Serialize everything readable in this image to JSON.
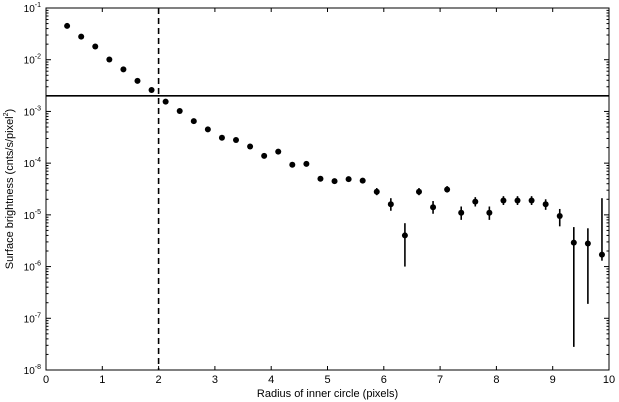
{
  "chart_data": {
    "type": "scatter",
    "title": "",
    "xlabel": "Radius of inner circle (pixels)",
    "ylabel": "Surface brightness (cnts/s/pixel",
    "ylabel_sup": "2",
    "ylabel_close": ")",
    "xlim": [
      0,
      10
    ],
    "ylim": [
      1e-08,
      0.1
    ],
    "yscale": "log",
    "grid": false,
    "x_ticks": [
      0,
      1,
      2,
      3,
      4,
      5,
      6,
      7,
      8,
      9,
      10
    ],
    "x_tick_labels": [
      "0",
      "1",
      "2",
      "3",
      "4",
      "5",
      "6",
      "7",
      "8",
      "9",
      "10"
    ],
    "y_ticks": [
      -8,
      -7,
      -6,
      -5,
      -4,
      -3,
      -2,
      -1
    ],
    "y_tick_labels": [
      {
        "base": "10",
        "exp": "-8"
      },
      {
        "base": "10",
        "exp": "-7"
      },
      {
        "base": "10",
        "exp": "-6"
      },
      {
        "base": "10",
        "exp": "-5"
      },
      {
        "base": "10",
        "exp": "-4"
      },
      {
        "base": "10",
        "exp": "-3"
      },
      {
        "base": "10",
        "exp": "-2"
      },
      {
        "base": "10",
        "exp": "-1"
      }
    ],
    "reference_lines": [
      {
        "orientation": "horizontal",
        "value": 0.002,
        "style": "solid"
      },
      {
        "orientation": "vertical",
        "value": 2,
        "style": "dashed"
      }
    ],
    "series": [
      {
        "marker": "circle",
        "color": "#000000",
        "points": [
          {
            "x": 0.375,
            "y": 0.045
          },
          {
            "x": 0.625,
            "y": 0.028
          },
          {
            "x": 0.875,
            "y": 0.018
          },
          {
            "x": 1.125,
            "y": 0.0101
          },
          {
            "x": 1.375,
            "y": 0.0065
          },
          {
            "x": 1.625,
            "y": 0.0039
          },
          {
            "x": 1.875,
            "y": 0.0026
          },
          {
            "x": 2.125,
            "y": 0.00155
          },
          {
            "x": 2.375,
            "y": 0.00102
          },
          {
            "x": 2.625,
            "y": 0.00065
          },
          {
            "x": 2.875,
            "y": 0.00045
          },
          {
            "x": 3.125,
            "y": 0.00031
          },
          {
            "x": 3.375,
            "y": 0.00028
          },
          {
            "x": 3.625,
            "y": 0.00021
          },
          {
            "x": 3.875,
            "y": 0.000138
          },
          {
            "x": 4.125,
            "y": 0.000167
          },
          {
            "x": 4.375,
            "y": 9.3e-05
          },
          {
            "x": 4.625,
            "y": 9.7e-05
          },
          {
            "x": 4.875,
            "y": 5e-05
          },
          {
            "x": 5.125,
            "y": 4.5e-05
          },
          {
            "x": 5.375,
            "y": 4.9e-05
          },
          {
            "x": 5.625,
            "y": 4.6e-05,
            "yerr_low": 4.1e-05,
            "yerr_high": 5.1e-05
          },
          {
            "x": 5.875,
            "y": 2.8e-05,
            "yerr_low": 2.4e-05,
            "yerr_high": 3.3e-05
          },
          {
            "x": 6.125,
            "y": 1.6e-05,
            "yerr_low": 1.2e-05,
            "yerr_high": 2.1e-05
          },
          {
            "x": 6.375,
            "y": 4e-06,
            "yerr_low": 1e-06,
            "yerr_high": 6.9e-06
          },
          {
            "x": 6.625,
            "y": 2.8e-05,
            "yerr_low": 2.4e-05,
            "yerr_high": 3.3e-05
          },
          {
            "x": 6.875,
            "y": 1.4e-05,
            "yerr_low": 1.05e-05,
            "yerr_high": 1.85e-05
          },
          {
            "x": 7.125,
            "y": 3.1e-05,
            "yerr_low": 2.7e-05,
            "yerr_high": 3.6e-05
          },
          {
            "x": 7.375,
            "y": 1.1e-05,
            "yerr_low": 8e-06,
            "yerr_high": 1.45e-05
          },
          {
            "x": 7.625,
            "y": 1.8e-05,
            "yerr_low": 1.45e-05,
            "yerr_high": 2.2e-05
          },
          {
            "x": 7.875,
            "y": 1.1e-05,
            "yerr_low": 8e-06,
            "yerr_high": 1.45e-05
          },
          {
            "x": 8.125,
            "y": 1.9e-05,
            "yerr_low": 1.55e-05,
            "yerr_high": 2.3e-05
          },
          {
            "x": 8.375,
            "y": 1.9e-05,
            "yerr_low": 1.55e-05,
            "yerr_high": 2.3e-05
          },
          {
            "x": 8.625,
            "y": 1.9e-05,
            "yerr_low": 1.55e-05,
            "yerr_high": 2.3e-05
          },
          {
            "x": 8.875,
            "y": 1.6e-05,
            "yerr_low": 1.25e-05,
            "yerr_high": 2e-05
          },
          {
            "x": 9.125,
            "y": 9.5e-06,
            "yerr_low": 6e-06,
            "yerr_high": 1.3e-05
          },
          {
            "x": 9.375,
            "y": 2.9e-06,
            "yerr_low": 2.8e-08,
            "yerr_high": 5.8e-06
          },
          {
            "x": 9.625,
            "y": 2.8e-06,
            "yerr_low": 1.9e-07,
            "yerr_high": 5.5e-06
          },
          {
            "x": 9.875,
            "y": 1.7e-06,
            "yerr_low": 1.3e-06,
            "yerr_high": 2.1e-05
          }
        ]
      }
    ]
  }
}
